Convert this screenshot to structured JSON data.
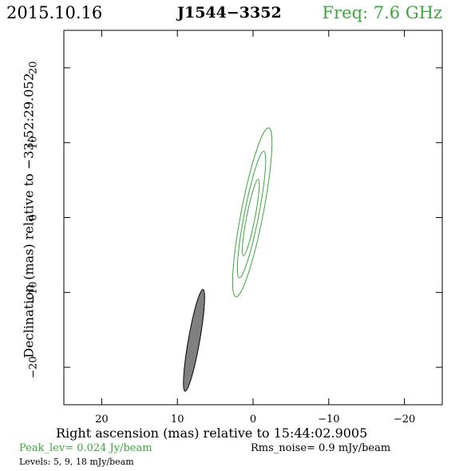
{
  "header": {
    "date": "2015.10.16",
    "source": "J1544−3352",
    "freq": "Freq: 7.6 GHz"
  },
  "footer": {
    "peak": "Peak_lev=  0.024 Jy/beam",
    "rms": "Rms_noise=   0.9 mJy/beam",
    "levels": "Levels:   5,   9,  18 mJy/beam"
  },
  "colors": {
    "contour": "#3aa83a",
    "beam_fill": "#808080",
    "text_green": "#3aa83a"
  },
  "chart_data": {
    "type": "contour",
    "xlabel": "Right ascension (mas) relative to 15:44:02.9005",
    "ylabel": "Declination (mas) relative to −33:52:29.052",
    "xlim": [
      25,
      -25
    ],
    "ylim": [
      -25,
      25
    ],
    "xticks": [
      20,
      10,
      0,
      -10,
      -20
    ],
    "xtick_labels": [
      "20",
      "10",
      "0",
      "−10",
      "−20"
    ],
    "yticks": [
      20,
      10,
      0,
      -10,
      -20
    ],
    "ytick_labels": [
      "20",
      "10",
      "0",
      "−10",
      "−20"
    ],
    "contours": [
      {
        "level": 5,
        "center": [
          0.1,
          0.7
        ],
        "major": 11.5,
        "minor": 1.45,
        "pa": -11
      },
      {
        "level": 9,
        "center": [
          0.2,
          0.4
        ],
        "major": 8.6,
        "minor": 0.95,
        "pa": -11
      },
      {
        "level": 18,
        "center": [
          0.3,
          0.0
        ],
        "major": 5.2,
        "minor": 0.55,
        "pa": -11
      }
    ],
    "beam": {
      "center": [
        7.8,
        -16.4
      ],
      "major": 6.9,
      "minor": 0.75,
      "pa": -10
    }
  }
}
